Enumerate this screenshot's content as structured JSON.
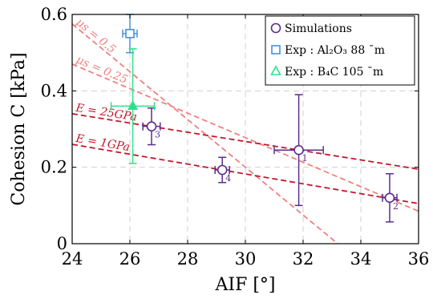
{
  "chart_data": {
    "type": "scatter",
    "xlabel": "AIF [°]",
    "ylabel": "Cohesion C [kPa]",
    "xlim": [
      24,
      36
    ],
    "ylim": [
      0,
      0.6
    ],
    "x_ticks": [
      "24",
      "26",
      "28",
      "30",
      "32",
      "34",
      "36"
    ],
    "y_ticks": [
      "0",
      "0.2",
      "0.4",
      "0.6"
    ],
    "grid": true,
    "legend_position": "top-right",
    "colors": {
      "simulations": "#5b2d8e",
      "exp_al2o3": "#4a90d9",
      "exp_b4c": "#2ee08a",
      "mu_lines": "#f08080",
      "e_lines": "#c0182e"
    },
    "legend": [
      {
        "label": "Simulations",
        "marker": "circle",
        "color": "#5b2d8e"
      },
      {
        "label": "Exp : Al₂O₃ 88 ¯m",
        "marker": "square",
        "color": "#4a90d9"
      },
      {
        "label": "Exp : B₄C 105 ¯m",
        "marker": "triangle",
        "color": "#2ee08a"
      }
    ],
    "series": [
      {
        "name": "Simulations",
        "points": [
          {
            "x": 31.85,
            "y": 0.245,
            "xerr": 0.85,
            "yerr": 0.145,
            "label": "1"
          },
          {
            "x": 35.0,
            "y": 0.12,
            "xerr": 0.25,
            "yerr": 0.063,
            "label": "2"
          },
          {
            "x": 26.75,
            "y": 0.307,
            "xerr": 0.3,
            "yerr": 0.048,
            "label": "3"
          },
          {
            "x": 29.2,
            "y": 0.193,
            "xerr": 0.25,
            "yerr": 0.033,
            "label": "4"
          }
        ]
      },
      {
        "name": "Exp : Al₂O₃ 88 ¯m",
        "points": [
          {
            "x": 26.0,
            "y": 0.55,
            "xerr": 0.25,
            "yerr": 0.05
          }
        ]
      },
      {
        "name": "Exp : B₄C 105 ¯m",
        "points": [
          {
            "x": 26.1,
            "y": 0.36,
            "xerr": 0.75,
            "yerr": 0.15
          }
        ]
      }
    ],
    "lines": [
      {
        "label": "μs = 0.5",
        "x1": 24.0,
        "y1": 0.575,
        "x2": 33.2,
        "y2": 0.0,
        "style": "dashed",
        "color": "#f08080"
      },
      {
        "label": "μs = 0.25",
        "x1": 24.0,
        "y1": 0.47,
        "x2": 36.0,
        "y2": 0.085,
        "style": "dashed",
        "color": "#f08080"
      },
      {
        "label": "E = 25GPa",
        "x1": 24.0,
        "y1": 0.34,
        "x2": 36.0,
        "y2": 0.195,
        "style": "dashed",
        "color": "#c0182e"
      },
      {
        "label": "E = 1GPa",
        "x1": 24.0,
        "y1": 0.26,
        "x2": 36.0,
        "y2": 0.105,
        "style": "dashed",
        "color": "#c0182e"
      }
    ]
  }
}
